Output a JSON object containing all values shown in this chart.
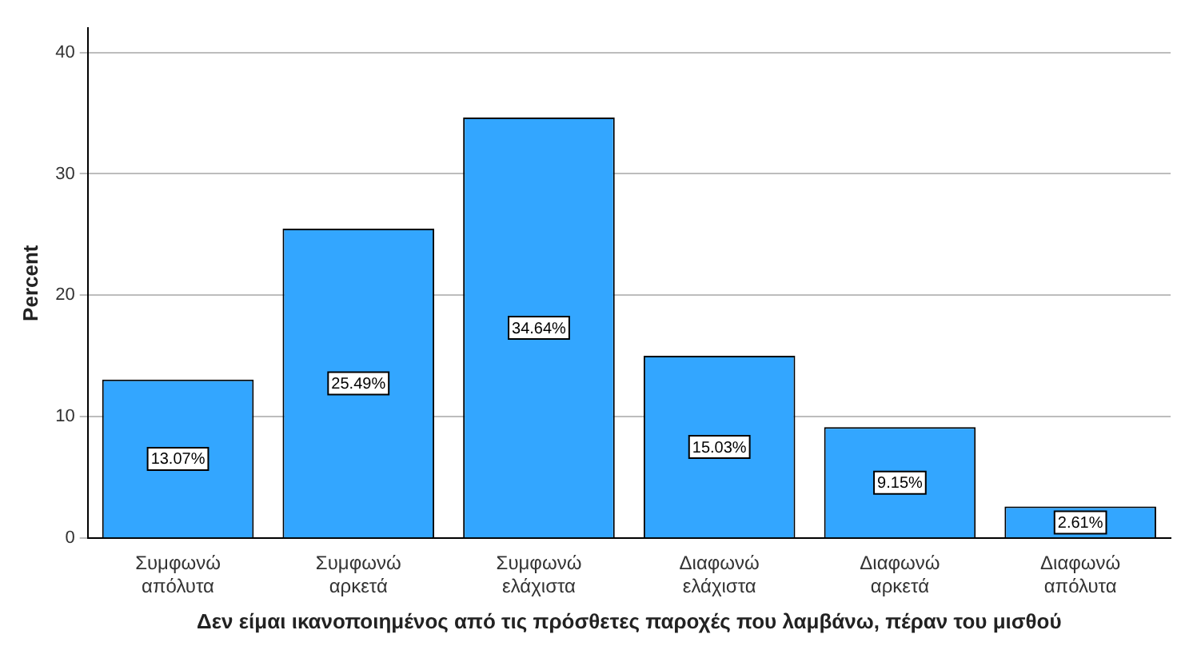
{
  "chart_data": {
    "type": "bar",
    "xlabel": "Δεν είμαι ικανοποιημένος από τις πρόσθετες παροχές που λαμβάνω, πέραν του μισθού",
    "ylabel": "Percent",
    "categories": [
      "Συμφωνώ απόλυτα",
      "Συμφωνώ αρκετά",
      "Συμφωνώ ελάχιστα",
      "Διαφωνώ ελάχιστα",
      "Διαφωνώ αρκετά",
      "Διαφωνώ απόλυτα"
    ],
    "values": [
      13.07,
      25.49,
      34.64,
      15.03,
      9.15,
      2.61
    ],
    "value_labels": [
      "13.07%",
      "25.49%",
      "34.64%",
      "15.03%",
      "9.15%",
      "2.61%"
    ],
    "color": "#33a6ff",
    "ylim": [
      0,
      42
    ],
    "yticks": [
      0,
      10,
      20,
      30,
      40
    ],
    "grid": "y",
    "legend": false
  }
}
